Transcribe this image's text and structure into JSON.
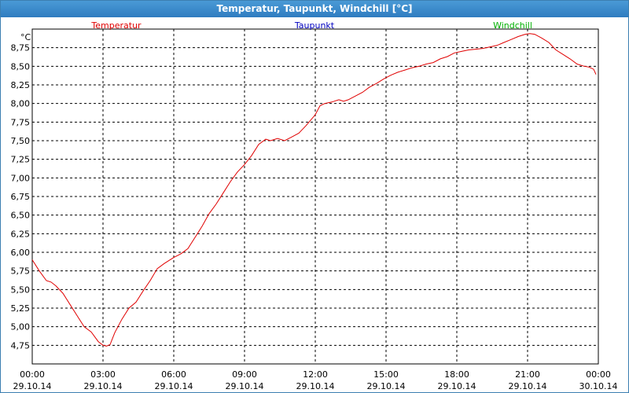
{
  "window": {
    "title": "Temperatur, Taupunkt, Windchill [°C]"
  },
  "chart_data": {
    "type": "line",
    "ylabel": "°C",
    "ylim": [
      4.5,
      9.0
    ],
    "yticks": [
      "4,75",
      "5,00",
      "5,25",
      "5,50",
      "5,75",
      "6,00",
      "6,25",
      "6,50",
      "6,75",
      "7,00",
      "7,25",
      "7,50",
      "7,75",
      "8,00",
      "8,25",
      "8,50",
      "8,75"
    ],
    "xticks": [
      {
        "time": "00:00",
        "date": "29.10.14"
      },
      {
        "time": "03:00",
        "date": "29.10.14"
      },
      {
        "time": "06:00",
        "date": "29.10.14"
      },
      {
        "time": "09:00",
        "date": "29.10.14"
      },
      {
        "time": "12:00",
        "date": "29.10.14"
      },
      {
        "time": "15:00",
        "date": "29.10.14"
      },
      {
        "time": "18:00",
        "date": "29.10.14"
      },
      {
        "time": "21:00",
        "date": "29.10.14"
      },
      {
        "time": "00:00",
        "date": "30.10.14"
      }
    ],
    "grid": true,
    "legend": [
      {
        "name": "Temperatur",
        "color": "#e00000"
      },
      {
        "name": "Taupunkt",
        "color": "#0000c0"
      },
      {
        "name": "Windchill",
        "color": "#00b000"
      }
    ],
    "series": [
      {
        "name": "Temperatur",
        "color": "#e00000",
        "x": [
          0.0,
          0.3,
          0.6,
          0.8,
          1.0,
          1.3,
          1.6,
          1.9,
          2.2,
          2.5,
          2.8,
          3.0,
          3.15,
          3.3,
          3.5,
          3.8,
          4.1,
          4.4,
          4.7,
          5.0,
          5.3,
          5.6,
          6.0,
          6.3,
          6.6,
          6.9,
          7.2,
          7.5,
          7.8,
          8.1,
          8.4,
          8.7,
          9.0,
          9.3,
          9.6,
          9.9,
          10.1,
          10.4,
          10.7,
          11.0,
          11.3,
          11.6,
          12.0,
          12.2,
          12.4,
          12.7,
          13.0,
          13.2,
          13.4,
          13.7,
          14.0,
          14.3,
          14.6,
          14.9,
          15.2,
          15.5,
          15.8,
          16.1,
          16.4,
          16.7,
          17.0,
          17.3,
          17.6,
          17.9,
          18.2,
          18.5,
          18.8,
          19.1,
          19.4,
          19.7,
          20.0,
          20.3,
          20.6,
          20.9,
          21.1,
          21.3,
          21.6,
          21.9,
          22.2,
          22.5,
          22.8,
          23.1,
          23.4,
          23.6,
          23.8,
          23.9
        ],
        "y": [
          5.9,
          5.75,
          5.62,
          5.6,
          5.55,
          5.45,
          5.3,
          5.15,
          5.0,
          4.93,
          4.8,
          4.75,
          4.74,
          4.76,
          4.92,
          5.1,
          5.25,
          5.33,
          5.48,
          5.62,
          5.78,
          5.85,
          5.93,
          5.98,
          6.05,
          6.2,
          6.35,
          6.52,
          6.65,
          6.8,
          6.95,
          7.08,
          7.18,
          7.3,
          7.45,
          7.52,
          7.5,
          7.53,
          7.5,
          7.55,
          7.6,
          7.7,
          7.85,
          7.97,
          8.0,
          8.02,
          8.05,
          8.03,
          8.05,
          8.1,
          8.15,
          8.22,
          8.27,
          8.33,
          8.38,
          8.42,
          8.45,
          8.48,
          8.5,
          8.53,
          8.55,
          8.6,
          8.63,
          8.68,
          8.7,
          8.72,
          8.73,
          8.74,
          8.76,
          8.78,
          8.82,
          8.86,
          8.9,
          8.93,
          8.94,
          8.93,
          8.88,
          8.82,
          8.72,
          8.66,
          8.6,
          8.53,
          8.5,
          8.49,
          8.46,
          8.39
        ]
      }
    ]
  }
}
